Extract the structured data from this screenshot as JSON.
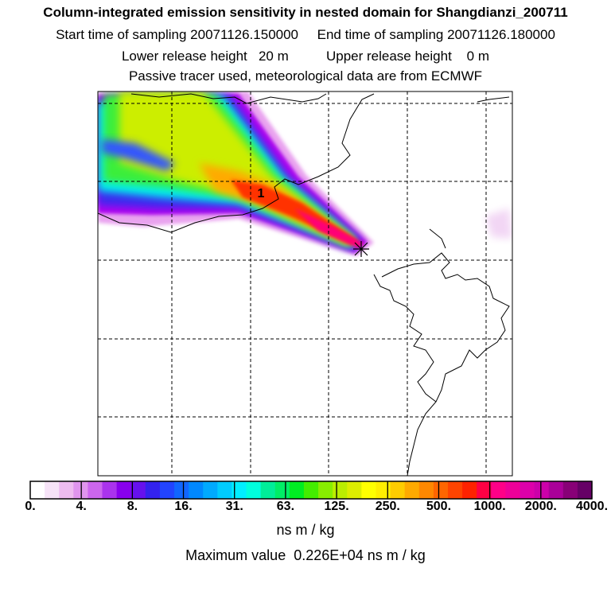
{
  "header": {
    "title": "Column-integrated emission sensitivity in nested domain for Shangdianzi_200711",
    "sampling": "Start time of sampling 20071126.150000     End time of sampling 20071126.180000",
    "release": "Lower release height   20 m          Upper release height    0 m",
    "note": "Passive tracer used, meteorological data are from ECMWF"
  },
  "map": {
    "contour_label": "1",
    "colors": {
      "coastline": "#000000",
      "grid": "#000000",
      "receptor_marker": "#000000"
    }
  },
  "colorbar": {
    "ticks": [
      "0.",
      "4.",
      "8.",
      "16.",
      "31.",
      "63.",
      "125.",
      "250.",
      "500.",
      "1000.",
      "2000.",
      "4000."
    ],
    "colors": [
      "#ffffff",
      "#f6e3f7",
      "#eebcf0",
      "#e095ee",
      "#cc66ee",
      "#aa33ee",
      "#8800ee",
      "#6611ee",
      "#3322ee",
      "#2244ff",
      "#1166ff",
      "#0088ff",
      "#00aaff",
      "#00ccff",
      "#00eeff",
      "#00ffdd",
      "#00ee99",
      "#00ee66",
      "#00ee22",
      "#44ee00",
      "#88ee00",
      "#bbee00",
      "#ddee00",
      "#ffff00",
      "#ffee00",
      "#ffcc00",
      "#ffaa00",
      "#ff8800",
      "#ff6600",
      "#ff4400",
      "#ff2200",
      "#ff0044",
      "#ff0088",
      "#ee0099",
      "#dd00aa",
      "#cc00aa",
      "#aa0099",
      "#880077",
      "#660066"
    ],
    "unit": "ns m / kg"
  },
  "footer": {
    "max_value": "Maximum value  0.226E+04 ns m / kg"
  }
}
